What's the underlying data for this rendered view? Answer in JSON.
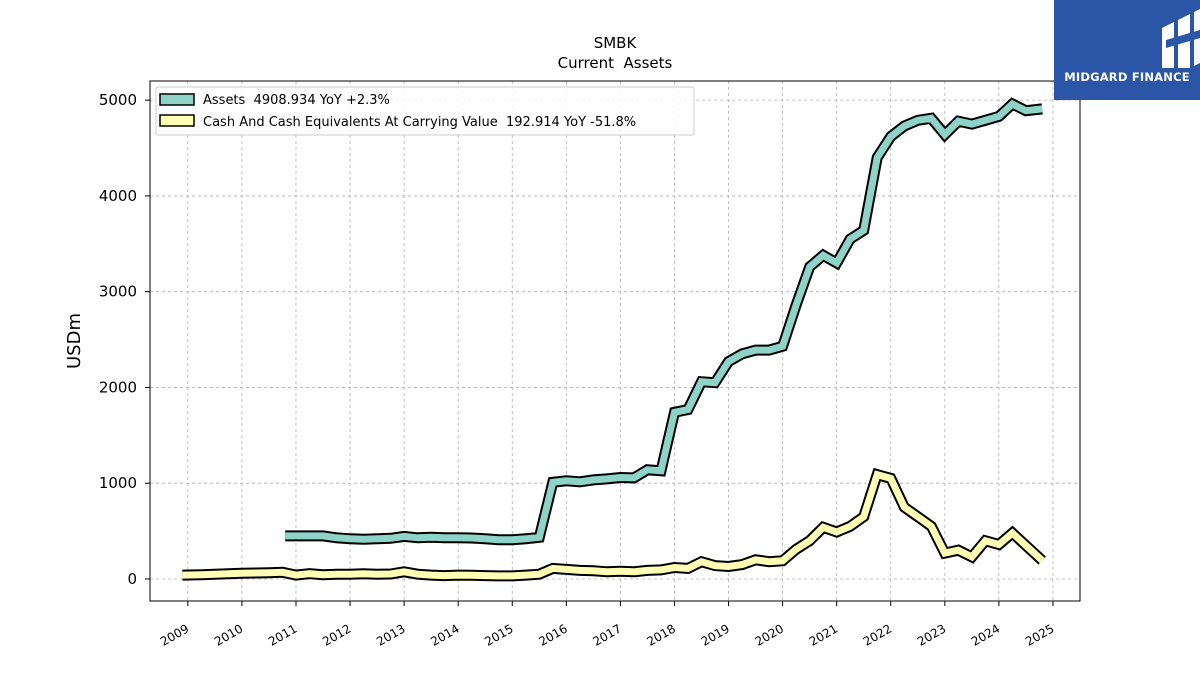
{
  "chart_data": {
    "type": "line",
    "title": "SMBK",
    "subtitle": "Current  Assets",
    "ylabel": "USDm",
    "xlabel": "",
    "ylim": [
      -230,
      5200
    ],
    "xlim": [
      2008.3,
      2025.5
    ],
    "yticks": [
      0,
      1000,
      2000,
      3000,
      4000,
      5000
    ],
    "xticks": [
      "2009",
      "2010",
      "2011",
      "2012",
      "2013",
      "2014",
      "2015",
      "2016",
      "2017",
      "2018",
      "2019",
      "2020",
      "2021",
      "2022",
      "2023",
      "2024",
      "2025"
    ],
    "grid": true,
    "legend_position": "top-left",
    "series": [
      {
        "name": "Assets",
        "legend_label": "Assets  4908.934 YoY +2.3%",
        "color": "#8dd3c7",
        "x": [
          2010.8,
          2011.0,
          2011.25,
          2011.5,
          2011.75,
          2012.0,
          2012.25,
          2012.5,
          2012.75,
          2013.0,
          2013.25,
          2013.5,
          2013.75,
          2014.0,
          2014.25,
          2014.5,
          2014.75,
          2015.0,
          2015.25,
          2015.5,
          2015.75,
          2016.0,
          2016.25,
          2016.5,
          2016.75,
          2017.0,
          2017.25,
          2017.5,
          2017.75,
          2018.0,
          2018.25,
          2018.5,
          2018.75,
          2019.0,
          2019.25,
          2019.5,
          2019.75,
          2020.0,
          2020.25,
          2020.5,
          2020.75,
          2021.0,
          2021.25,
          2021.5,
          2021.75,
          2022.0,
          2022.25,
          2022.5,
          2022.75,
          2023.0,
          2023.25,
          2023.5,
          2023.75,
          2024.0,
          2024.25,
          2024.5,
          2024.8
        ],
        "y": [
          450,
          450,
          450,
          450,
          430,
          420,
          415,
          420,
          425,
          445,
          430,
          435,
          430,
          430,
          428,
          420,
          410,
          410,
          420,
          435,
          1010,
          1025,
          1015,
          1035,
          1045,
          1060,
          1055,
          1140,
          1130,
          1740,
          1770,
          2060,
          2050,
          2270,
          2350,
          2390,
          2390,
          2430,
          2860,
          3260,
          3380,
          3300,
          3550,
          3640,
          4400,
          4620,
          4730,
          4790,
          4810,
          4640,
          4780,
          4750,
          4790,
          4830,
          4960,
          4890,
          4909
        ]
      },
      {
        "name": "Cash And Cash Equivalents At Carrying Value",
        "legend_label": "Cash And Cash Equivalents At Carrying Value  192.914 YoY -51.8%",
        "color": "#ffffb3",
        "x": [
          2008.9,
          2009.25,
          2009.5,
          2009.75,
          2010.0,
          2010.25,
          2010.5,
          2010.75,
          2011.0,
          2011.25,
          2011.5,
          2011.75,
          2012.0,
          2012.25,
          2012.5,
          2012.75,
          2013.0,
          2013.25,
          2013.5,
          2013.75,
          2014.0,
          2014.25,
          2014.5,
          2014.75,
          2015.0,
          2015.25,
          2015.5,
          2015.75,
          2016.0,
          2016.25,
          2016.5,
          2016.75,
          2017.0,
          2017.25,
          2017.5,
          2017.75,
          2018.0,
          2018.25,
          2018.5,
          2018.75,
          2019.0,
          2019.25,
          2019.5,
          2019.75,
          2020.0,
          2020.25,
          2020.5,
          2020.75,
          2021.0,
          2021.25,
          2021.5,
          2021.75,
          2022.0,
          2022.25,
          2022.5,
          2022.75,
          2023.0,
          2023.25,
          2023.5,
          2023.75,
          2024.0,
          2024.25,
          2024.5,
          2024.8
        ],
        "y": [
          40,
          45,
          50,
          55,
          60,
          62,
          65,
          70,
          40,
          55,
          45,
          50,
          50,
          55,
          50,
          52,
          75,
          50,
          40,
          35,
          40,
          38,
          35,
          32,
          32,
          40,
          50,
          110,
          100,
          90,
          85,
          75,
          80,
          75,
          90,
          95,
          120,
          110,
          180,
          140,
          130,
          150,
          200,
          180,
          190,
          310,
          400,
          540,
          490,
          550,
          650,
          1090,
          1050,
          750,
          650,
          550,
          270,
          300,
          230,
          400,
          360,
          480,
          350,
          193
        ]
      }
    ]
  },
  "logo": {
    "text": "MIDGARD FINANCE"
  }
}
